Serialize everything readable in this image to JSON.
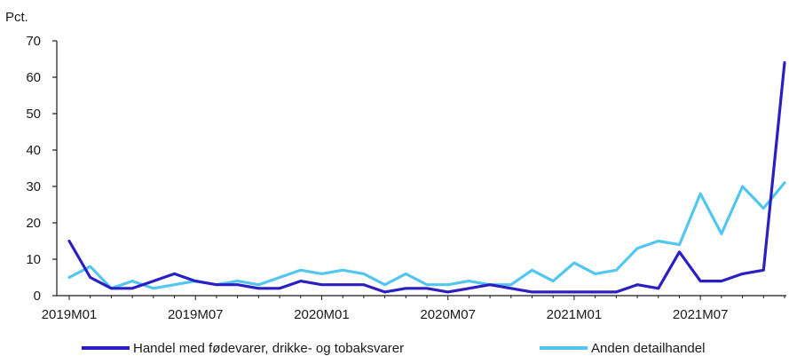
{
  "chart_data": {
    "type": "line",
    "title": "",
    "xlabel": "",
    "ylabel": "Pct.",
    "ylim": [
      0,
      70
    ],
    "yticks": [
      0,
      10,
      20,
      30,
      40,
      50,
      60,
      70
    ],
    "x": [
      "2019M01",
      "2019M02",
      "2019M03",
      "2019M04",
      "2019M05",
      "2019M06",
      "2019M07",
      "2019M08",
      "2019M09",
      "2019M10",
      "2019M11",
      "2019M12",
      "2020M01",
      "2020M02",
      "2020M03",
      "2020M04",
      "2020M05",
      "2020M06",
      "2020M07",
      "2020M08",
      "2020M09",
      "2020M10",
      "2020M11",
      "2020M12",
      "2021M01",
      "2021M02",
      "2021M03",
      "2021M04",
      "2021M05",
      "2021M06",
      "2021M07",
      "2021M08",
      "2021M09",
      "2021M10",
      "2021M11"
    ],
    "xticks": [
      "2019M01",
      "2019M07",
      "2020M01",
      "2020M07",
      "2021M01",
      "2021M07"
    ],
    "grid": false,
    "legend_position": "bottom",
    "series": [
      {
        "name": "Handel med fødevarer, drikke- og tobaksvarer",
        "color": "#2b1fc4",
        "values": [
          15,
          5,
          2,
          2,
          4,
          6,
          4,
          3,
          3,
          2,
          2,
          4,
          3,
          3,
          3,
          1,
          2,
          2,
          1,
          2,
          3,
          2,
          1,
          1,
          1,
          1,
          1,
          3,
          2,
          12,
          4,
          4,
          6,
          7,
          64
        ]
      },
      {
        "name": "Anden detailhandel",
        "color": "#52c6ef",
        "values": [
          5,
          8,
          2,
          4,
          2,
          3,
          4,
          3,
          4,
          3,
          5,
          7,
          6,
          7,
          6,
          3,
          6,
          3,
          3,
          4,
          3,
          3,
          7,
          4,
          9,
          6,
          7,
          13,
          15,
          14,
          28,
          17,
          30,
          24,
          31
        ]
      }
    ]
  }
}
